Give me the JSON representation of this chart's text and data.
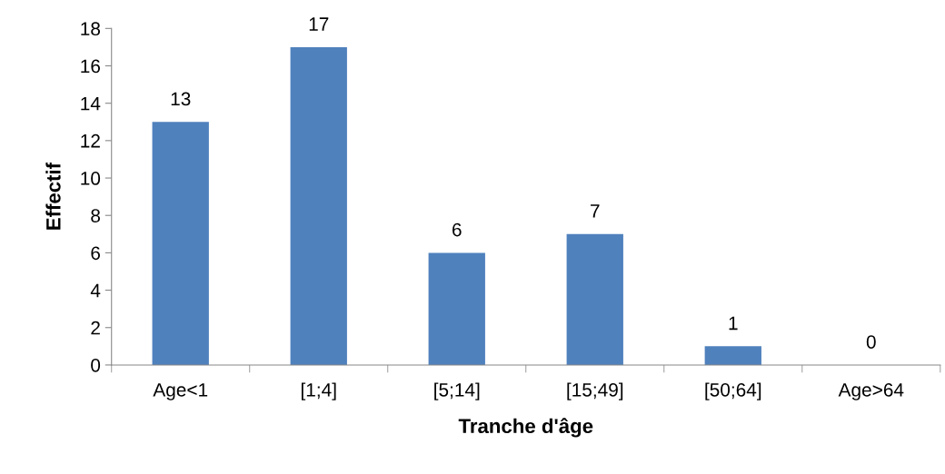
{
  "chart_data": {
    "type": "bar",
    "xlabel": "Tranche d'âge",
    "ylabel": "Effectif",
    "categories": [
      "Age<1",
      "[1;4]",
      "[5;14]",
      "[15;49]",
      "[50;64]",
      "Age>64"
    ],
    "values": [
      13,
      17,
      6,
      7,
      1,
      0
    ],
    "color": "#4f81bd",
    "ylim": [
      0,
      18
    ],
    "yticks": [
      0,
      2,
      4,
      6,
      8,
      10,
      12,
      14,
      16,
      18
    ],
    "data_labels": true,
    "grid": false,
    "legend": false
  }
}
